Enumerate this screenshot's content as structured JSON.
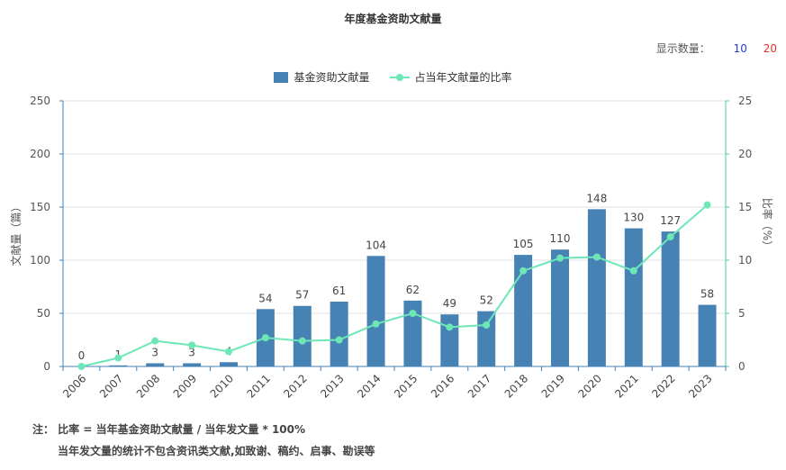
{
  "title": "年度基金资助文献量",
  "count_selector": {
    "label": "显示数量：",
    "options": [
      "10",
      "20"
    ]
  },
  "legend": {
    "bar": "基金资助文献量",
    "line": "占当年文献量的比率"
  },
  "notes": {
    "line1": "注： 比率 = 当年基金资助文献量 / 当年发文量 * 100%",
    "line2": "当年发文量的统计不包含资讯类文献,如致谢、稿约、启事、勘误等"
  },
  "colors": {
    "bar": "#4682b4",
    "line": "#6ee7b7",
    "axis_left": "#4682b4",
    "axis_right": "#4cc9a0"
  },
  "chart_data": {
    "type": "bar",
    "categories": [
      "2006",
      "2007",
      "2008",
      "2009",
      "2010",
      "2011",
      "2012",
      "2013",
      "2014",
      "2015",
      "2016",
      "2017",
      "2018",
      "2019",
      "2020",
      "2021",
      "2022",
      "2023"
    ],
    "series": [
      {
        "name": "基金资助文献量",
        "type": "bar",
        "axis": "left",
        "values": [
          0,
          1,
          3,
          3,
          4,
          54,
          57,
          61,
          104,
          62,
          49,
          52,
          105,
          110,
          148,
          130,
          127,
          58
        ]
      },
      {
        "name": "占当年文献量的比率",
        "type": "line",
        "axis": "right",
        "values": [
          0,
          0.8,
          2.4,
          2.0,
          1.4,
          2.7,
          2.4,
          2.5,
          4.0,
          5.0,
          3.7,
          3.9,
          9.0,
          10.2,
          10.3,
          9.0,
          12.2,
          15.2
        ]
      }
    ],
    "ylabel": "文献量（篇）",
    "y2label": "比率（%）",
    "ylim": [
      0,
      250
    ],
    "y2lim": [
      0,
      25
    ],
    "yticks": [
      0,
      50,
      100,
      150,
      200,
      250
    ],
    "y2ticks": [
      0,
      5,
      10,
      15,
      20,
      25
    ],
    "grid": true,
    "legend_position": "top-center"
  }
}
